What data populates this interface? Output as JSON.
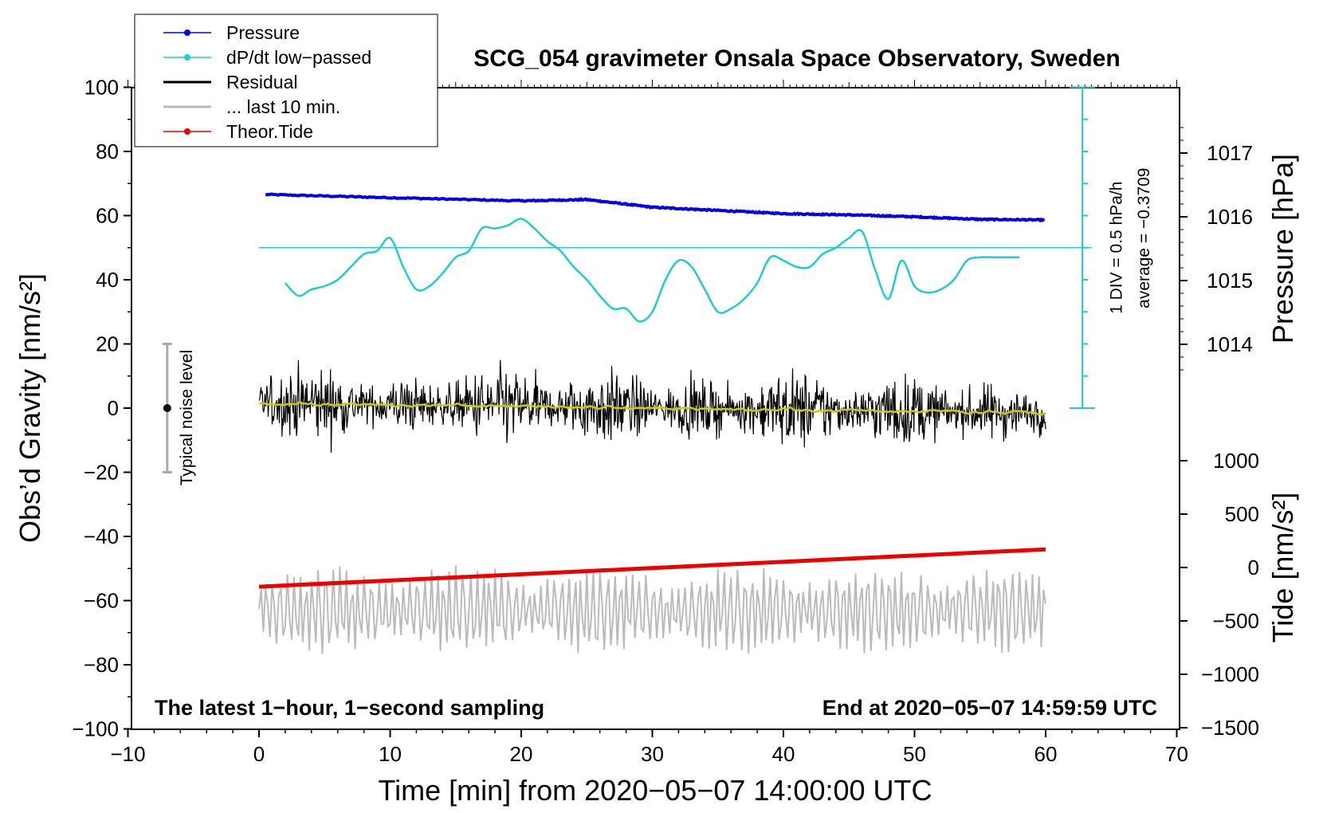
{
  "chart_data": {
    "type": "line",
    "title": "SCG_054 gravimeter Onsala Space Observatory, Sweden",
    "xlabel": "Time [min] from 2020−05−07 14:00:00 UTC",
    "ylabel_left": "Obs’d Gravity [nm/s²]",
    "ylabel_pressure": "Pressure [hPa]",
    "ylabel_tide": "Tide [nm/s²]",
    "xlim": [
      -10,
      70
    ],
    "ylim_left": [
      -100,
      100
    ],
    "x_ticks": [
      "−10",
      "0",
      "10",
      "20",
      "30",
      "40",
      "50",
      "60",
      "70"
    ],
    "y_left_ticks": [
      "100",
      "80",
      "60",
      "40",
      "20",
      "0",
      "−20",
      "−40",
      "−60",
      "−80",
      "−100"
    ],
    "pressure_ticks": [
      "1017",
      "1016",
      "1015",
      "1014"
    ],
    "tide_ticks": [
      "1000",
      "500",
      "0",
      "−500",
      "−1000",
      "−1500"
    ],
    "bottom_left_note": "The latest 1−hour, 1−second sampling",
    "bottom_right_note": "End at 2020−05−07 14:59:59 UTC",
    "noise_label": "Typical noise level",
    "noise_range": [
      -20,
      20
    ],
    "dpdt_scale_label": "1 DIV = 0.5 hPa/h",
    "dpdt_average_label": "average = −0.3709",
    "legend": [
      {
        "label": "Pressure",
        "color": "#0000ee",
        "marker": true
      },
      {
        "label": "dP/dt low−passed",
        "color": "#22cccc",
        "marker": true
      },
      {
        "label": "Residual",
        "color": "#000000",
        "marker": false
      },
      {
        "label": "... last 10 min.",
        "color": "#bbbbbb",
        "marker": false
      },
      {
        "label": "Theor.Tide",
        "color": "#ee0000",
        "marker": true
      }
    ],
    "series": [
      {
        "name": "Pressure",
        "axis": "pressure",
        "color": "#0000ee",
        "x": [
          0.5,
          10,
          20,
          25,
          30,
          35,
          40,
          45,
          50,
          55,
          60
        ],
        "y": [
          1016.35,
          1016.3,
          1016.25,
          1016.27,
          1016.15,
          1016.1,
          1016.05,
          1016.03,
          1016.0,
          1015.96,
          1015.95
        ]
      },
      {
        "name": "dP/dt low−passed",
        "axis": "gravity",
        "color": "#22cccc",
        "reference_level": 50,
        "x": [
          2,
          3,
          4,
          5,
          6,
          7,
          8,
          9,
          10,
          11,
          12,
          13,
          14,
          15,
          16,
          17,
          18,
          19,
          20,
          21,
          22,
          23,
          24,
          25,
          26,
          27,
          28,
          29,
          30,
          31,
          32,
          33,
          34,
          35,
          36,
          37,
          38,
          39,
          40,
          41,
          42,
          43,
          44,
          45,
          46,
          47,
          48,
          49,
          50,
          51,
          52,
          53,
          54,
          55,
          56,
          57,
          58
        ],
        "y": [
          39,
          35,
          37,
          38,
          40,
          44,
          48,
          49,
          53,
          44,
          37,
          38,
          42,
          47,
          49,
          56,
          56,
          57,
          59,
          56,
          52,
          49,
          44,
          40,
          35,
          31,
          31,
          27,
          30,
          40,
          46,
          44,
          37,
          30,
          31,
          34,
          39,
          47,
          46,
          44,
          44,
          48,
          50,
          53,
          55,
          43,
          34,
          46,
          38,
          36,
          37,
          40,
          46,
          47,
          47,
          47,
          47
        ]
      },
      {
        "name": "Residual",
        "axis": "gravity",
        "color": "#000000",
        "amplitude": 10,
        "trend_start": 1.5,
        "trend_end": -1.5,
        "x_range": [
          0,
          60
        ]
      },
      {
        "name": "... last 10 min.",
        "axis": "gravity",
        "color": "#bbbbbb",
        "center": -63,
        "amplitude": 13,
        "x_range": [
          0,
          60
        ]
      },
      {
        "name": "Theor.Tide",
        "axis": "tide",
        "color": "#ee0000",
        "x": [
          0,
          60
        ],
        "y": [
          -180,
          170
        ]
      }
    ]
  }
}
